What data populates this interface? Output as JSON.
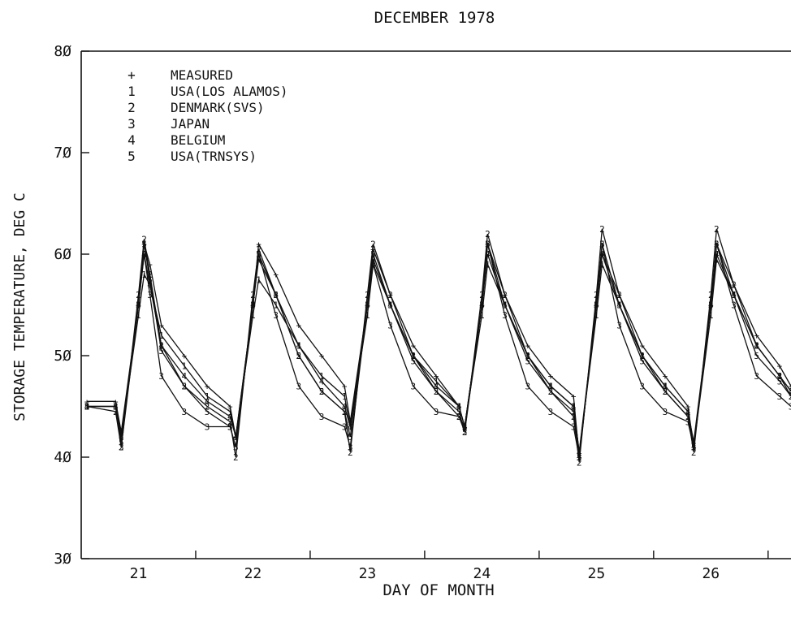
{
  "chart_data": {
    "type": "line",
    "title": "DECEMBER 1978",
    "xlabel": "DAY OF MONTH",
    "ylabel": "STORAGE TEMPERATURE, DEG C",
    "xlim": [
      20.5,
      26.7
    ],
    "ylim": [
      30,
      80
    ],
    "xticks": [
      21,
      22,
      23,
      24,
      25,
      26
    ],
    "yticks": [
      30,
      40,
      50,
      60,
      70,
      80
    ],
    "ytick_labels": [
      "3Ø",
      "4Ø",
      "5Ø",
      "6Ø",
      "7Ø",
      "8Ø"
    ],
    "grid": false,
    "legend_position": "top-left",
    "series": [
      {
        "name": "MEASURED",
        "marker": "+",
        "x": [
          20.55,
          20.8,
          20.85,
          21.0,
          21.05,
          21.1,
          21.2,
          21.4,
          21.6,
          21.8,
          21.85,
          22.0,
          22.05,
          22.2,
          22.4,
          22.6,
          22.8,
          22.85,
          23.0,
          23.05,
          23.2,
          23.4,
          23.6,
          23.8,
          23.85,
          24.0,
          24.05,
          24.2,
          24.4,
          24.6,
          24.8,
          24.85,
          25.0,
          25.05,
          25.2,
          25.4,
          25.6,
          25.8,
          25.85,
          26.0,
          26.05,
          26.2,
          26.4,
          26.6,
          26.7
        ],
        "y": [
          45.5,
          45.5,
          42.5,
          55,
          61,
          59,
          53,
          50,
          47,
          45,
          42,
          55,
          61,
          58,
          53,
          50,
          47,
          43.5,
          55,
          60.5,
          56,
          51,
          48,
          45,
          43,
          55,
          61,
          56,
          51,
          48,
          46,
          40,
          55,
          60,
          56,
          51,
          48,
          45,
          41,
          55,
          61,
          57,
          52,
          49,
          47
        ]
      },
      {
        "name": "USA(LOS ALAMOS)",
        "marker": "1",
        "x": [
          20.55,
          20.8,
          20.85,
          21.0,
          21.05,
          21.1,
          21.2,
          21.4,
          21.6,
          21.8,
          21.85,
          22.0,
          22.05,
          22.2,
          22.4,
          22.6,
          22.8,
          22.85,
          23.0,
          23.05,
          23.2,
          23.4,
          23.6,
          23.8,
          23.85,
          24.0,
          24.05,
          24.2,
          24.4,
          24.6,
          24.8,
          24.85,
          25.0,
          25.05,
          25.2,
          25.4,
          25.6,
          25.8,
          25.85,
          26.0,
          26.05,
          26.2,
          26.4,
          26.6,
          26.7
        ],
        "y": [
          45,
          45,
          42,
          54,
          58,
          57,
          52,
          49,
          46,
          44.5,
          42,
          54,
          57.5,
          55,
          51,
          48,
          46,
          43,
          54,
          59,
          55,
          50,
          47.5,
          45,
          43,
          54,
          59,
          55,
          50,
          47,
          45,
          40.5,
          54,
          59,
          55,
          50,
          47,
          44.5,
          41,
          54,
          59.5,
          56,
          51,
          48,
          46.5
        ]
      },
      {
        "name": "DENMARK(SVS)",
        "marker": "2",
        "x": [
          20.55,
          20.8,
          20.85,
          21.0,
          21.05,
          21.1,
          21.2,
          21.4,
          21.6,
          21.8,
          21.85,
          22.0,
          22.05,
          22.2,
          22.4,
          22.6,
          22.8,
          22.85,
          23.0,
          23.05,
          23.2,
          23.4,
          23.6,
          23.8,
          23.85,
          24.0,
          24.05,
          24.2,
          24.4,
          24.6,
          24.8,
          24.85,
          25.0,
          25.05,
          25.2,
          25.4,
          25.6,
          25.8,
          25.85,
          26.0,
          26.05,
          26.2,
          26.4,
          26.6,
          26.7
        ],
        "y": [
          45,
          44.5,
          41,
          56,
          61.5,
          58,
          51,
          47,
          45,
          43.5,
          40,
          56,
          60.5,
          56,
          50,
          46.5,
          44.5,
          40.5,
          56,
          61,
          56,
          50,
          46.5,
          44,
          42.5,
          56,
          62,
          56,
          50,
          46.5,
          44,
          39.5,
          56,
          62.5,
          56,
          50,
          46.5,
          44,
          40.5,
          56,
          62.5,
          57,
          51,
          48,
          46
        ]
      },
      {
        "name": "JAPAN",
        "marker": "3",
        "x": [
          20.55,
          20.8,
          20.85,
          21.0,
          21.05,
          21.1,
          21.2,
          21.4,
          21.6,
          21.8,
          21.85,
          22.0,
          22.05,
          22.2,
          22.4,
          22.6,
          22.8,
          22.85,
          23.0,
          23.05,
          23.2,
          23.4,
          23.6,
          23.8,
          23.85,
          24.0,
          24.05,
          24.2,
          24.4,
          24.6,
          24.8,
          24.85,
          25.0,
          25.05,
          25.2,
          25.4,
          25.6,
          25.8,
          25.85,
          26.0,
          26.05,
          26.2,
          26.4,
          26.6,
          26.7
        ],
        "y": [
          45,
          45,
          41,
          55,
          60,
          56,
          48,
          44.5,
          43,
          43,
          41,
          55,
          60,
          54,
          47,
          44,
          43,
          41,
          55,
          59,
          53,
          47,
          44.5,
          44,
          43,
          55,
          61,
          54,
          47,
          44.5,
          43,
          40,
          55,
          61,
          53,
          47,
          44.5,
          43.5,
          41,
          55,
          61,
          55,
          48,
          46,
          45
        ]
      },
      {
        "name": "BELGIUM",
        "marker": "4",
        "x": [
          20.55,
          20.8,
          20.85,
          21.0,
          21.05,
          21.1,
          21.2,
          21.4,
          21.6,
          21.8,
          21.85,
          22.0,
          22.05,
          22.2,
          22.4,
          22.6,
          22.8,
          22.85,
          23.0,
          23.05,
          23.2,
          23.4,
          23.6,
          23.8,
          23.85,
          24.0,
          24.05,
          24.2,
          24.4,
          24.6,
          24.8,
          24.85,
          25.0,
          25.05,
          25.2,
          25.4,
          25.6,
          25.8,
          25.85,
          26.0,
          26.05,
          26.2,
          26.4,
          26.6,
          26.7
        ],
        "y": [
          45,
          45,
          42,
          55,
          60,
          57,
          51,
          48,
          45.5,
          44,
          42,
          55,
          59.5,
          56,
          51,
          47.5,
          45,
          43,
          55,
          59.5,
          55,
          50,
          47,
          45,
          43,
          55,
          60,
          55,
          50,
          47,
          45,
          40.5,
          55,
          60,
          55,
          50,
          47,
          44.5,
          41.5,
          55,
          60,
          56,
          51,
          48,
          46.5
        ]
      },
      {
        "name": "USA(TRNSYS)",
        "marker": "5",
        "x": [
          20.55,
          20.8,
          20.85,
          21.0,
          21.05,
          21.1,
          21.2,
          21.4,
          21.6,
          21.8,
          21.85,
          22.0,
          22.05,
          22.2,
          22.4,
          22.6,
          22.8,
          22.85,
          23.0,
          23.05,
          23.2,
          23.4,
          23.6,
          23.8,
          23.85,
          24.0,
          24.05,
          24.2,
          24.4,
          24.6,
          24.8,
          24.85,
          25.0,
          25.05,
          25.2,
          25.4,
          25.6,
          25.8,
          25.85,
          26.0,
          26.05,
          26.2,
          26.4,
          26.6,
          26.7
        ],
        "y": [
          45,
          45,
          41.5,
          55,
          61,
          57.5,
          50.5,
          47,
          44.5,
          43,
          41,
          55,
          60,
          56,
          50,
          46.5,
          44.5,
          42,
          55,
          60,
          55,
          49.5,
          46.5,
          44.5,
          42.5,
          55,
          61,
          55,
          49.5,
          46.5,
          44.5,
          40,
          55,
          61,
          55,
          49.5,
          46.5,
          44,
          41,
          55,
          61,
          56,
          50,
          47.5,
          46
        ]
      }
    ]
  }
}
